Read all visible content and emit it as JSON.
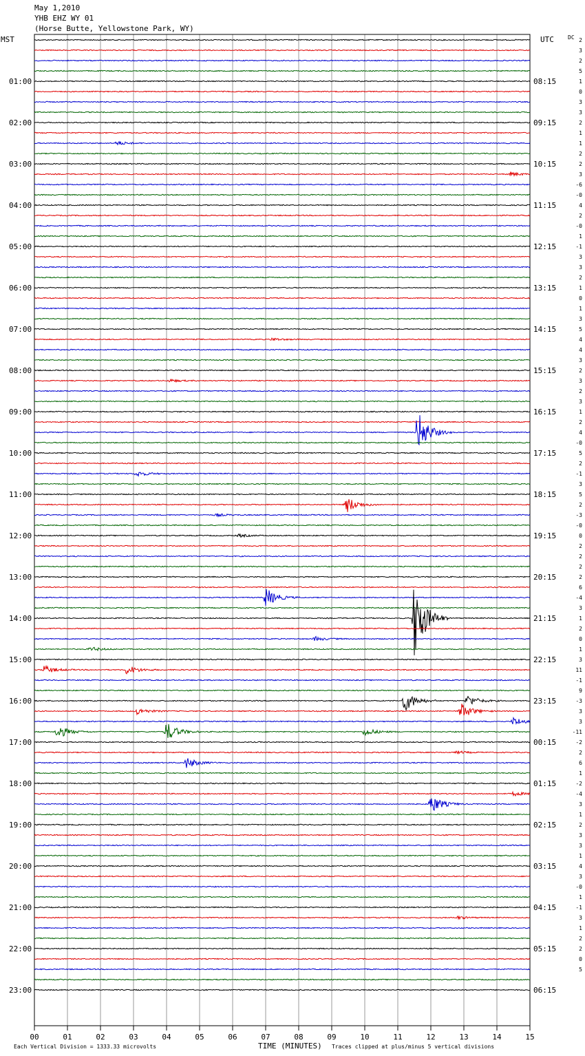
{
  "header": {
    "line1": "May 1,2010",
    "line2": "YHB EHZ WY 01",
    "line3": "(Horse Butte, Yellowstone Park, WY)"
  },
  "left_axis_title": "MST",
  "right_axis_title": "UTC",
  "dc_title": "DC",
  "footer": {
    "scale_note": "Each Vertical Division = 1333.33 microvolts",
    "xaxis_title": "TIME (MINUTES)",
    "clip_note": "Traces clipped at plus/minus 5 vertical divisions"
  },
  "colors": {
    "trace": [
      "#000000",
      "#e00000",
      "#0000d0",
      "#006400"
    ],
    "grid": "#9a9a9a"
  },
  "chart_data": {
    "type": "line",
    "title": "YHB EHZ WY 01",
    "xlabel": "TIME (MINUTES)",
    "xlim": [
      0,
      15
    ],
    "x_ticks": [
      "00",
      "01",
      "02",
      "03",
      "04",
      "05",
      "06",
      "07",
      "08",
      "09",
      "10",
      "11",
      "12",
      "13",
      "14",
      "15"
    ],
    "left_hour_labels": [
      "",
      "01:00",
      "02:00",
      "03:00",
      "04:00",
      "05:00",
      "06:00",
      "07:00",
      "08:00",
      "09:00",
      "10:00",
      "11:00",
      "12:00",
      "13:00",
      "14:00",
      "15:00",
      "16:00",
      "17:00",
      "18:00",
      "19:00",
      "20:00",
      "21:00",
      "22:00",
      "23:00"
    ],
    "right_hour_labels": [
      "",
      "08:15",
      "09:15",
      "10:15",
      "11:15",
      "12:15",
      "13:15",
      "14:15",
      "15:15",
      "16:15",
      "17:15",
      "18:15",
      "19:15",
      "20:15",
      "21:15",
      "22:15",
      "23:15",
      "00:15",
      "01:15",
      "02:15",
      "03:15",
      "04:15",
      "05:15",
      "06:15"
    ],
    "traces_per_hour": 4,
    "trace_count": 93,
    "dc_offsets": [
      "2",
      "3",
      "2",
      "5",
      "1",
      "0",
      "3",
      "3",
      "2",
      "1",
      "1",
      "2",
      "2",
      "3",
      "-6",
      "-0",
      "4",
      "2",
      "-0",
      "1",
      "-1",
      "3",
      "3",
      "2",
      "1",
      "0",
      "1",
      "3",
      "5",
      "4",
      "4",
      "3",
      "2",
      "3",
      "2",
      "3",
      "1",
      "2",
      "4",
      "-0",
      "5",
      "2",
      "-1",
      "3",
      "5",
      "2",
      "-3",
      "-0",
      "0",
      "2",
      "2",
      "2",
      "2",
      "6",
      "-4",
      "3",
      "1",
      "2",
      "0",
      "1",
      "3",
      "11",
      "-1",
      "9",
      "-3",
      "3",
      "3",
      "-11",
      "-2",
      "2",
      "6",
      "1",
      "-2",
      "-4",
      "3",
      "1",
      "2",
      "3",
      "3",
      "1",
      "4",
      "3",
      "-0",
      "1",
      "-1",
      "3",
      "1",
      "2",
      "2",
      "0",
      "5"
    ],
    "events": [
      {
        "trace": 10,
        "minute": 2.5,
        "amp": 3
      },
      {
        "trace": 13,
        "minute": 14.4,
        "amp": 3
      },
      {
        "trace": 29,
        "minute": 7.2,
        "amp": 2
      },
      {
        "trace": 33,
        "minute": 4.1,
        "amp": 2
      },
      {
        "trace": 38,
        "minute": 11.6,
        "amp": 32
      },
      {
        "trace": 42,
        "minute": 3.1,
        "amp": 4
      },
      {
        "trace": 45,
        "minute": 9.45,
        "amp": 12
      },
      {
        "trace": 46,
        "minute": 5.5,
        "amp": 2
      },
      {
        "trace": 48,
        "minute": 6.2,
        "amp": 2
      },
      {
        "trace": 54,
        "minute": 7.0,
        "amp": 14
      },
      {
        "trace": 56,
        "minute": 11.5,
        "amp": 60
      },
      {
        "trace": 58,
        "minute": 8.5,
        "amp": 3
      },
      {
        "trace": 59,
        "minute": 1.7,
        "amp": 3
      },
      {
        "trace": 61,
        "minute": 0.3,
        "amp": 6
      },
      {
        "trace": 61,
        "minute": 2.8,
        "amp": 7
      },
      {
        "trace": 64,
        "minute": 11.2,
        "amp": 16
      },
      {
        "trace": 64,
        "minute": 13.1,
        "amp": 8
      },
      {
        "trace": 65,
        "minute": 3.1,
        "amp": 5
      },
      {
        "trace": 65,
        "minute": 12.9,
        "amp": 12
      },
      {
        "trace": 66,
        "minute": 14.5,
        "amp": 6
      },
      {
        "trace": 67,
        "minute": 0.7,
        "amp": 10
      },
      {
        "trace": 67,
        "minute": 4.0,
        "amp": 14
      },
      {
        "trace": 67,
        "minute": 10.0,
        "amp": 6
      },
      {
        "trace": 69,
        "minute": 12.8,
        "amp": 2
      },
      {
        "trace": 70,
        "minute": 4.6,
        "amp": 8
      },
      {
        "trace": 73,
        "minute": 14.5,
        "amp": 3
      },
      {
        "trace": 74,
        "minute": 12.0,
        "amp": 14
      },
      {
        "trace": 85,
        "minute": 12.8,
        "amp": 2
      }
    ]
  }
}
